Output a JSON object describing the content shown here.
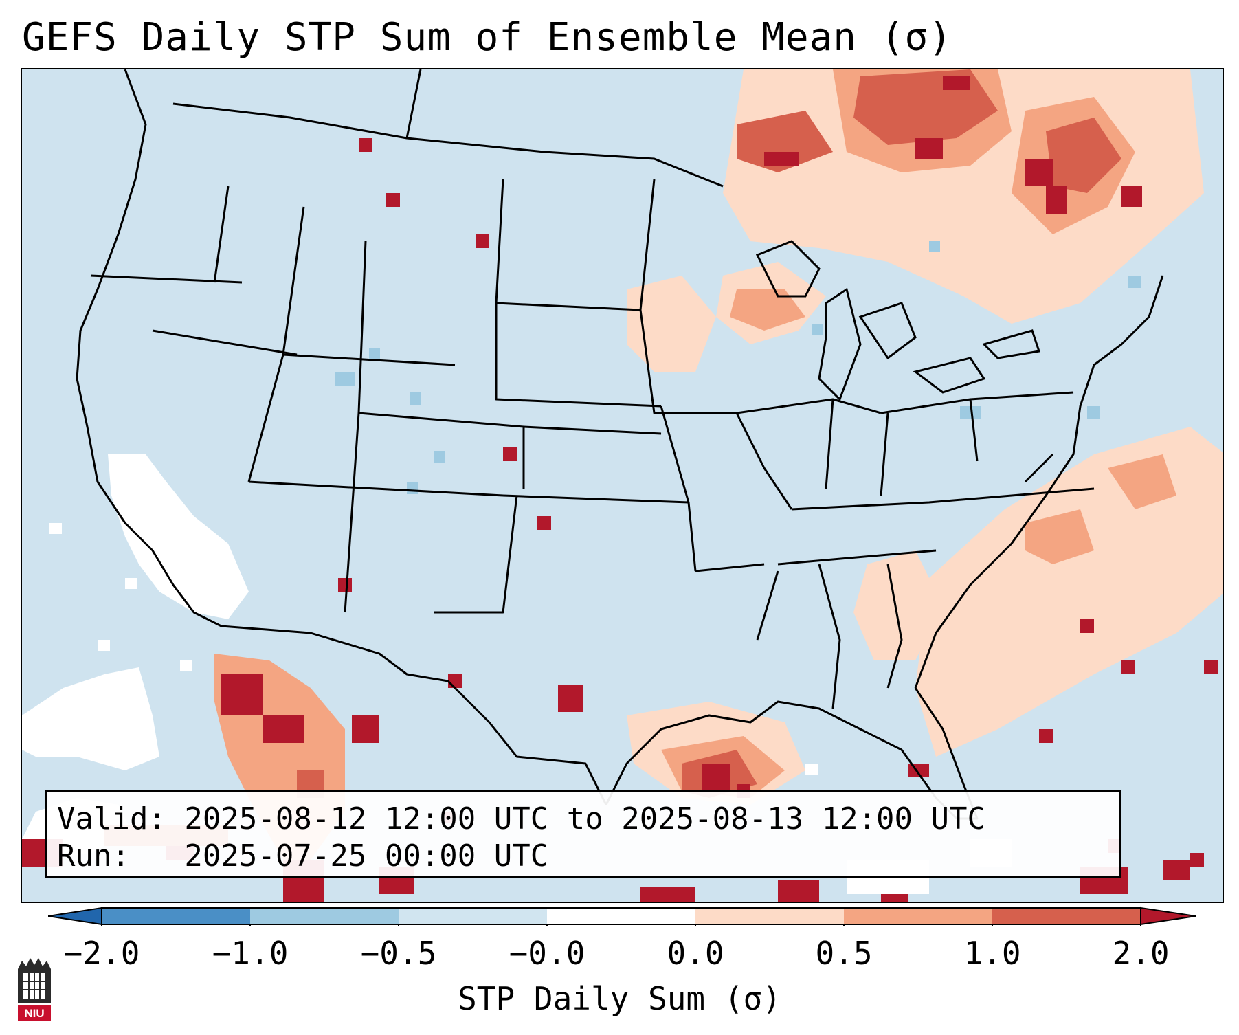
{
  "figure": {
    "title": "GEFS Daily STP Sum of Ensemble Mean (σ)",
    "valid_line": "Valid: 2025-08-12 12:00 UTC to 2025-08-13 12:00 UTC",
    "run_line": "Run:   2025-07-25 00:00 UTC"
  },
  "colorbar": {
    "label": "STP Daily Sum (σ)",
    "tick_labels": [
      "−2.0",
      "−1.0",
      "−0.5",
      "−0.0",
      "0.0",
      "0.5",
      "1.0",
      "2.0"
    ],
    "bin_colors": [
      "#4a8fc6",
      "#9ecae1",
      "#d1e5f0",
      "#ffffff",
      "#fddbc7",
      "#f4a582",
      "#d6604d"
    ],
    "extend_low_color": "#2166ac",
    "extend_high_color": "#b2182b"
  },
  "chart_data": {
    "type": "heatmap",
    "title": "GEFS Daily STP Sum of Ensemble Mean (σ)",
    "variable": "STP Daily Sum (σ)",
    "levels": [
      -2.0,
      -1.0,
      -0.5,
      -0.0,
      0.0,
      0.5,
      1.0,
      2.0
    ],
    "extend": "both",
    "region": "Contiguous United States",
    "valid": "2025-08-12 12:00 UTC to 2025-08-13 12:00 UTC",
    "run": "2025-07-25 00:00 UTC"
  },
  "logo": {
    "name": "NIU",
    "text": "NIU"
  }
}
